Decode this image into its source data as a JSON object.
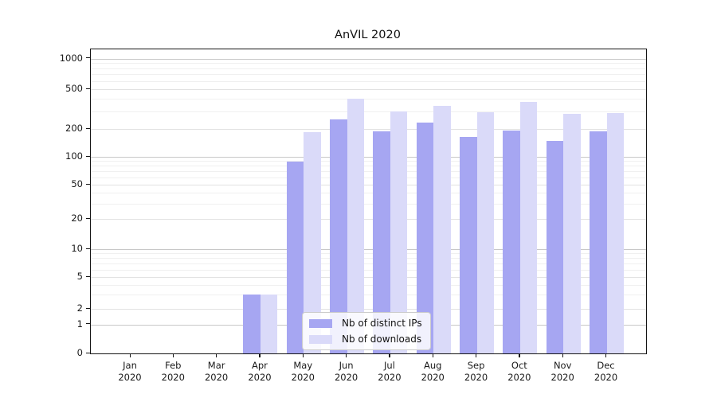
{
  "chart_data": {
    "type": "bar",
    "title": "AnVIL 2020",
    "yscale": "symlog",
    "grid": "horizontal major+minor, no vertical",
    "legend_position": "lower center",
    "year": "2020",
    "categories": [
      "Jan",
      "Feb",
      "Mar",
      "Apr",
      "May",
      "Jun",
      "Jul",
      "Aug",
      "Sep",
      "Oct",
      "Nov",
      "Dec"
    ],
    "series": [
      {
        "name": "Nb of distinct IPs",
        "color": "#a6a6f2",
        "values": [
          0,
          0,
          0,
          3,
          88,
          247,
          190,
          230,
          165,
          192,
          148,
          188
        ]
      },
      {
        "name": "Nb of downloads",
        "color": "#dadaf9",
        "values": [
          0,
          0,
          0,
          3,
          186,
          400,
          300,
          340,
          295,
          370,
          284,
          290
        ]
      }
    ],
    "y_ticks": [
      0,
      1,
      2,
      5,
      10,
      20,
      50,
      100,
      200,
      500,
      1000
    ],
    "y_tick_labels": [
      "0",
      "1",
      "2",
      "5",
      "10",
      "20",
      "50",
      "100",
      "200",
      "500",
      "1000"
    ],
    "ylim": [
      0,
      1200
    ]
  },
  "colors": {
    "background": "#ffffff",
    "axis": "#141414",
    "text": "#1a1a1a",
    "grid_decade": "#c8c8c8",
    "grid_labeled": "#e2e2e2",
    "grid_minor": "#f0f0f0"
  }
}
